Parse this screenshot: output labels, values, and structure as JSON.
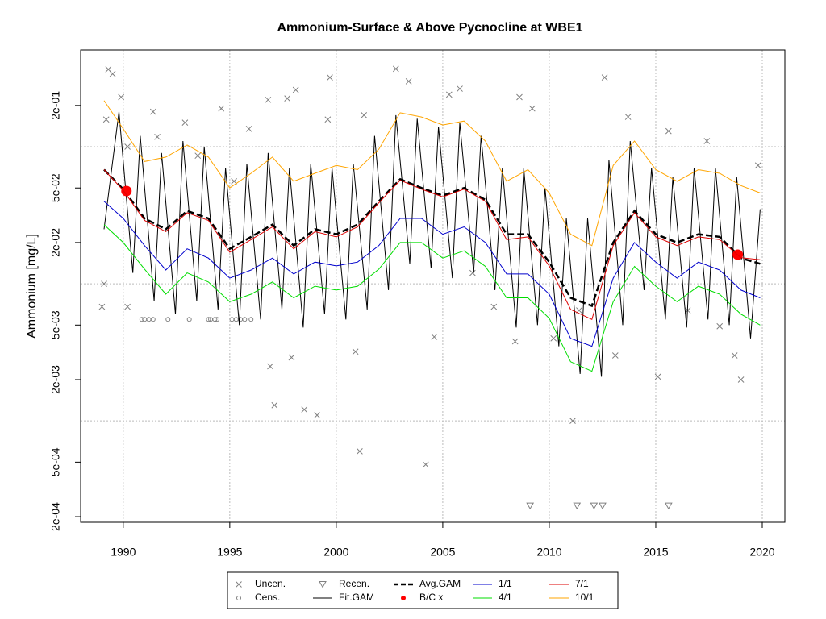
{
  "chart_data": {
    "type": "line",
    "title": "Ammonium-Surface & Above Pycnocline at WBE1",
    "ylabel": "Ammonium [mg/L]",
    "log_y": true,
    "xlim": [
      1988,
      2021.06
    ],
    "ylim": [
      0.000182,
      0.508
    ],
    "xticks": [
      1990,
      1995,
      2000,
      2005,
      2010,
      2015,
      2020
    ],
    "yticks": [
      {
        "value": 0.0002,
        "label": "2e-04"
      },
      {
        "value": 0.0005,
        "label": "5e-04"
      },
      {
        "value": 0.002,
        "label": "2e-03"
      },
      {
        "value": 0.005,
        "label": "5e-03"
      },
      {
        "value": 0.02,
        "label": "2e-02"
      },
      {
        "value": 0.05,
        "label": "5e-02"
      },
      {
        "value": 0.2,
        "label": "2e-01"
      }
    ],
    "grid": true,
    "ygrid": [
      0.001,
      0.01,
      0.1
    ],
    "series": [
      {
        "name": "Uncen.",
        "color": "#808080",
        "style": "points",
        "marker": "x",
        "x": [
          1989.3,
          1989.5,
          1989.2,
          1989.0,
          1989.1,
          1989.9,
          1990.2,
          1990.2,
          1991.4,
          1991.6,
          1992.9,
          1993.5,
          1994.6,
          1995.2,
          1995.9,
          1996.8,
          1996.9,
          1997.1,
          1997.7,
          1998.1,
          1997.9,
          1998.5,
          1999.1,
          1999.7,
          1999.6,
          2001.1,
          2001.3,
          2000.9,
          2002.8,
          2003.4,
          2004.2,
          2005.3,
          2005.8,
          2004.6,
          2006.4,
          2008.6,
          2009.2,
          2008.4,
          2011.1,
          2011.4,
          2012.6,
          2013.1,
          2013.7,
          2015.1,
          2015.6,
          2017.4,
          2018.7,
          2019.0,
          2019.8,
          2018.0,
          2016.5,
          2007.4,
          2010.2
        ],
        "values": [
          0.367,
          0.34,
          0.158,
          0.0068,
          0.01,
          0.23,
          0.1,
          0.0068,
          0.18,
          0.118,
          0.15,
          0.086,
          0.19,
          0.056,
          0.135,
          0.22,
          0.0025,
          0.0013,
          0.225,
          0.26,
          0.0029,
          0.00121,
          0.0011,
          0.32,
          0.158,
          0.0006,
          0.17,
          0.0032,
          0.37,
          0.3,
          0.00048,
          0.24,
          0.265,
          0.0041,
          0.012,
          0.23,
          0.19,
          0.0038,
          0.001,
          0.0064,
          0.32,
          0.003,
          0.165,
          0.0021,
          0.13,
          0.11,
          0.003,
          0.002,
          0.073,
          0.0049,
          0.0064,
          0.0068,
          0.004
        ]
      },
      {
        "name": "Cens.",
        "color": "#808080",
        "style": "points",
        "marker": "circle",
        "x": [
          1990.87,
          1991.0,
          1991.2,
          1991.4,
          1992.1,
          1993.1,
          1994.0,
          1994.1,
          1994.3,
          1994.4,
          1995.1,
          1995.3,
          1995.5,
          1995.7,
          1996.0
        ],
        "values": [
          0.0055,
          0.0055,
          0.0055,
          0.0055,
          0.0055,
          0.0055,
          0.0055,
          0.0055,
          0.0055,
          0.0055,
          0.0055,
          0.0055,
          0.0055,
          0.0055,
          0.0055
        ]
      },
      {
        "name": "Recen.",
        "color": "#808080",
        "style": "points",
        "marker": "triangle",
        "x": [
          2009.1,
          2011.3,
          2012.1,
          2012.5,
          2015.6
        ],
        "values": [
          0.00024,
          0.00024,
          0.00024,
          0.00024,
          0.00024
        ]
      },
      {
        "name": "Fit.GAM",
        "color": "#000000",
        "style": "line",
        "x": [
          1989.1,
          1989.8,
          1990.45,
          1990.8,
          1991.45,
          1991.8,
          1992.45,
          1992.8,
          1993.45,
          1993.8,
          1994.45,
          1994.8,
          1995.45,
          1995.8,
          1996.45,
          1996.8,
          1997.45,
          1997.8,
          1998.45,
          1998.8,
          1999.45,
          1999.8,
          2000.45,
          2000.8,
          2001.45,
          2001.8,
          2002.45,
          2002.8,
          2003.45,
          2003.8,
          2004.45,
          2004.8,
          2005.45,
          2005.8,
          2006.45,
          2006.8,
          2007.45,
          2007.8,
          2008.45,
          2008.8,
          2009.45,
          2009.8,
          2010.45,
          2010.8,
          2011.45,
          2011.8,
          2012.45,
          2012.8,
          2013.45,
          2013.8,
          2014.45,
          2014.8,
          2015.45,
          2015.8,
          2016.45,
          2016.8,
          2017.45,
          2017.8,
          2018.45,
          2018.8,
          2019.45,
          2019.9
        ],
        "values": [
          0.025,
          0.18,
          0.012,
          0.12,
          0.0075,
          0.09,
          0.006,
          0.11,
          0.0075,
          0.1,
          0.0065,
          0.07,
          0.005,
          0.075,
          0.0055,
          0.09,
          0.0065,
          0.07,
          0.0048,
          0.075,
          0.006,
          0.07,
          0.0055,
          0.075,
          0.0065,
          0.12,
          0.009,
          0.17,
          0.014,
          0.16,
          0.013,
          0.14,
          0.011,
          0.15,
          0.012,
          0.12,
          0.009,
          0.07,
          0.0048,
          0.07,
          0.005,
          0.05,
          0.0035,
          0.03,
          0.0022,
          0.03,
          0.0021,
          0.08,
          0.005,
          0.11,
          0.009,
          0.07,
          0.0055,
          0.06,
          0.0048,
          0.07,
          0.0055,
          0.07,
          0.005,
          0.06,
          0.004,
          0.035
        ]
      },
      {
        "name": "Avg.GAM",
        "color": "#000000",
        "style": "dashed",
        "x": [
          1989.1,
          1990,
          1991,
          1992,
          1993,
          1994,
          1995,
          1996,
          1997,
          1998,
          1999,
          2000,
          2001,
          2002,
          2003,
          2004,
          2005,
          2006,
          2007,
          2008,
          2009,
          2010,
          2011,
          2012,
          2013,
          2014,
          2015,
          2016,
          2017,
          2018,
          2019,
          2019.9
        ],
        "values": [
          0.068,
          0.049,
          0.03,
          0.025,
          0.034,
          0.03,
          0.018,
          0.022,
          0.027,
          0.019,
          0.025,
          0.023,
          0.027,
          0.04,
          0.058,
          0.05,
          0.044,
          0.05,
          0.041,
          0.023,
          0.023,
          0.0144,
          0.0079,
          0.0069,
          0.02,
          0.034,
          0.023,
          0.02,
          0.023,
          0.022,
          0.0154,
          0.014
        ]
      },
      {
        "name": "B/C x",
        "color": "#ff0000",
        "style": "points",
        "marker": "dot",
        "x": [
          1990.15,
          2018.85
        ],
        "values": [
          0.0475,
          0.0163
        ]
      },
      {
        "name": "1/1",
        "color": "#0000cc",
        "style": "line",
        "x": [
          1989.1,
          1990,
          1991,
          1992,
          1993,
          1994,
          1995,
          1996,
          1997,
          1998,
          1999,
          2000,
          2001,
          2002,
          2003,
          2004,
          2005,
          2006,
          2007,
          2008,
          2009,
          2010,
          2011,
          2012,
          2013,
          2014,
          2015,
          2016,
          2017,
          2018,
          2019,
          2019.9
        ],
        "values": [
          0.04,
          0.03,
          0.019,
          0.0126,
          0.018,
          0.0154,
          0.011,
          0.0126,
          0.0154,
          0.0118,
          0.0144,
          0.0135,
          0.0144,
          0.019,
          0.03,
          0.03,
          0.023,
          0.026,
          0.02,
          0.0118,
          0.0118,
          0.0084,
          0.004,
          0.0035,
          0.011,
          0.02,
          0.0144,
          0.011,
          0.0144,
          0.0126,
          0.009,
          0.0079
        ]
      },
      {
        "name": "4/1",
        "color": "#00dd00",
        "style": "line",
        "x": [
          1989.1,
          1990,
          1991,
          1992,
          1993,
          1994,
          1995,
          1996,
          1997,
          1998,
          1999,
          2000,
          2001,
          2002,
          2003,
          2004,
          2005,
          2006,
          2007,
          2008,
          2009,
          2010,
          2011,
          2012,
          2013,
          2014,
          2015,
          2016,
          2017,
          2018,
          2019,
          2019.9
        ],
        "values": [
          0.027,
          0.02,
          0.0128,
          0.0084,
          0.012,
          0.0103,
          0.0074,
          0.0084,
          0.0103,
          0.0079,
          0.0096,
          0.009,
          0.0096,
          0.0128,
          0.02,
          0.02,
          0.0154,
          0.0174,
          0.0134,
          0.0079,
          0.0079,
          0.0056,
          0.0027,
          0.0023,
          0.0074,
          0.0134,
          0.0096,
          0.0074,
          0.0096,
          0.0084,
          0.006,
          0.005
        ]
      },
      {
        "name": "7/1",
        "color": "#dd0000",
        "style": "line",
        "x": [
          1989.1,
          1990,
          1991,
          1992,
          1993,
          1994,
          1995,
          1996,
          1997,
          1998,
          1999,
          2000,
          2001,
          2002,
          2003,
          2004,
          2005,
          2006,
          2007,
          2008,
          2009,
          2010,
          2011,
          2012,
          2013,
          2014,
          2015,
          2016,
          2017,
          2018,
          2019,
          2019.9
        ],
        "values": [
          0.068,
          0.048,
          0.029,
          0.024,
          0.033,
          0.029,
          0.017,
          0.021,
          0.026,
          0.018,
          0.024,
          0.022,
          0.026,
          0.039,
          0.057,
          0.049,
          0.043,
          0.049,
          0.04,
          0.021,
          0.022,
          0.0135,
          0.0065,
          0.0055,
          0.019,
          0.033,
          0.022,
          0.019,
          0.022,
          0.021,
          0.0155,
          0.015
        ]
      },
      {
        "name": "10/1",
        "color": "#ffa500",
        "style": "line",
        "x": [
          1989.1,
          1990,
          1991,
          1992,
          1993,
          1994,
          1995,
          1996,
          1997,
          1998,
          1999,
          2000,
          2001,
          2002,
          2003,
          2004,
          2005,
          2006,
          2007,
          2008,
          2009,
          2010,
          2011,
          2012,
          2013,
          2014,
          2015,
          2016,
          2017,
          2018,
          2019,
          2019.9
        ],
        "values": [
          0.217,
          0.135,
          0.078,
          0.084,
          0.103,
          0.084,
          0.05,
          0.064,
          0.084,
          0.056,
          0.064,
          0.073,
          0.068,
          0.096,
          0.177,
          0.165,
          0.144,
          0.154,
          0.11,
          0.056,
          0.068,
          0.046,
          0.023,
          0.019,
          0.073,
          0.11,
          0.068,
          0.056,
          0.068,
          0.064,
          0.052,
          0.046
        ]
      }
    ]
  }
}
